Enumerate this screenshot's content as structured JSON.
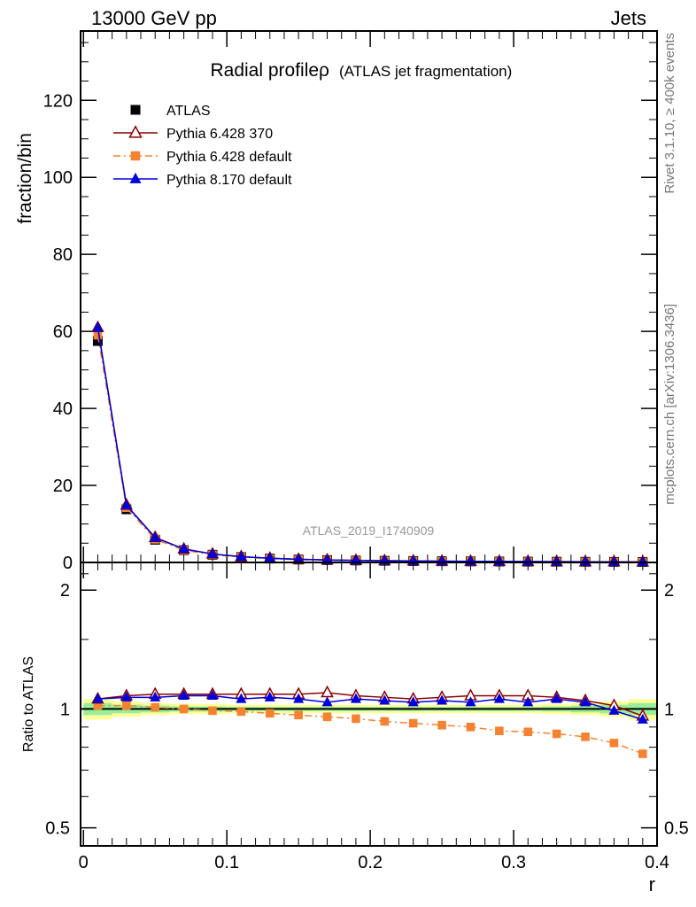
{
  "header": {
    "energy_label": "13000 GeV pp",
    "process_label": "Jets",
    "side_label_top": "Rivet 3.1.10, ≥ 400k events",
    "side_label_bottom": "mcplots.cern.ch [arXiv:1306.3436]"
  },
  "chart_data": [
    {
      "type": "line",
      "title": "Radial profileρ",
      "subtitle": "(ATLAS jet fragmentation)",
      "watermark": "ATLAS_2019_I1740909",
      "ylabel": "fraction/bin",
      "xlim": [
        -0.002,
        0.4
      ],
      "ylim": [
        0,
        138
      ],
      "yticks": [
        0,
        20,
        40,
        60,
        80,
        100,
        120
      ],
      "x": [
        0.01,
        0.03,
        0.05,
        0.07,
        0.09,
        0.11,
        0.13,
        0.15,
        0.17,
        0.19,
        0.21,
        0.23,
        0.25,
        0.27,
        0.29,
        0.31,
        0.33,
        0.35,
        0.37,
        0.39
      ],
      "legend_placement": "top-left",
      "series": [
        {
          "name": "ATLAS",
          "color": "#000000",
          "marker": "square",
          "line": "none",
          "values": [
            57.5,
            13.8,
            5.9,
            3.2,
            2.0,
            1.4,
            1.0,
            0.75,
            0.6,
            0.5,
            0.42,
            0.36,
            0.31,
            0.27,
            0.24,
            0.21,
            0.19,
            0.17,
            0.15,
            0.13
          ]
        },
        {
          "name": "Pythia 6.428 370",
          "color": "#8b0000",
          "marker": "open-triangle",
          "line": "solid",
          "values": [
            61.0,
            14.9,
            6.5,
            3.5,
            2.2,
            1.5,
            1.1,
            0.82,
            0.66,
            0.55,
            0.46,
            0.39,
            0.34,
            0.3,
            0.26,
            0.23,
            0.2,
            0.18,
            0.16,
            0.13
          ]
        },
        {
          "name": "Pythia 6.428 default",
          "color": "#f58231",
          "marker": "filled-square",
          "line": "dashdot",
          "values": [
            59.0,
            14.2,
            6.0,
            3.2,
            2.0,
            1.4,
            0.98,
            0.73,
            0.57,
            0.48,
            0.39,
            0.33,
            0.28,
            0.25,
            0.21,
            0.19,
            0.17,
            0.15,
            0.13,
            0.1
          ]
        },
        {
          "name": "Pythia 8.170 default",
          "color": "#0000dd",
          "marker": "filled-triangle",
          "line": "solid",
          "values": [
            61.0,
            14.8,
            6.4,
            3.5,
            2.2,
            1.5,
            1.08,
            0.8,
            0.62,
            0.53,
            0.45,
            0.38,
            0.33,
            0.29,
            0.26,
            0.23,
            0.2,
            0.18,
            0.15,
            0.12
          ]
        }
      ]
    },
    {
      "type": "line",
      "ylabel": "Ratio to ATLAS",
      "xlabel": "r",
      "xlim": [
        -0.002,
        0.4
      ],
      "xticks": [
        0,
        0.1,
        0.2,
        0.3,
        0.4
      ],
      "xtick_labels": [
        "0",
        "0.1",
        "0.2",
        "0.3",
        "0.4"
      ],
      "ylim": [
        0.45,
        2.35
      ],
      "y_scale": "log",
      "yticks": [
        0.5,
        1,
        2
      ],
      "ytick_labels": [
        "0.5",
        "1",
        "2"
      ],
      "reference": 1,
      "x": [
        0.01,
        0.03,
        0.05,
        0.07,
        0.09,
        0.11,
        0.13,
        0.15,
        0.17,
        0.19,
        0.21,
        0.23,
        0.25,
        0.27,
        0.29,
        0.31,
        0.33,
        0.35,
        0.37,
        0.39
      ],
      "uncertainty_band": {
        "colors": {
          "outer": "#ffff99",
          "inner": "#99ee99"
        },
        "outer": [
          0.06,
          0.045,
          0.035,
          0.03,
          0.03,
          0.025,
          0.025,
          0.025,
          0.025,
          0.025,
          0.025,
          0.025,
          0.025,
          0.025,
          0.025,
          0.025,
          0.03,
          0.035,
          0.045,
          0.06
        ],
        "inner": [
          0.035,
          0.025,
          0.02,
          0.015,
          0.015,
          0.012,
          0.012,
          0.012,
          0.012,
          0.012,
          0.012,
          0.012,
          0.012,
          0.012,
          0.012,
          0.012,
          0.015,
          0.02,
          0.025,
          0.035
        ]
      },
      "series": [
        {
          "name": "Pythia 6.428 370",
          "color": "#8b0000",
          "marker": "open-triangle",
          "line": "solid",
          "values": [
            1.06,
            1.08,
            1.09,
            1.09,
            1.09,
            1.09,
            1.09,
            1.09,
            1.1,
            1.08,
            1.07,
            1.06,
            1.07,
            1.08,
            1.08,
            1.08,
            1.07,
            1.05,
            1.02,
            0.96
          ]
        },
        {
          "name": "Pythia 6.428 default",
          "color": "#f58231",
          "marker": "filled-square",
          "line": "dashdot",
          "values": [
            1.02,
            1.02,
            1.01,
            1.0,
            0.99,
            0.985,
            0.975,
            0.965,
            0.955,
            0.945,
            0.93,
            0.92,
            0.91,
            0.9,
            0.88,
            0.875,
            0.865,
            0.85,
            0.82,
            0.77
          ]
        },
        {
          "name": "Pythia 8.170 default",
          "color": "#0000dd",
          "marker": "filled-triangle",
          "line": "solid",
          "values": [
            1.06,
            1.07,
            1.07,
            1.08,
            1.08,
            1.06,
            1.07,
            1.06,
            1.04,
            1.06,
            1.05,
            1.04,
            1.05,
            1.04,
            1.06,
            1.04,
            1.06,
            1.04,
            0.99,
            0.94
          ]
        }
      ]
    }
  ]
}
